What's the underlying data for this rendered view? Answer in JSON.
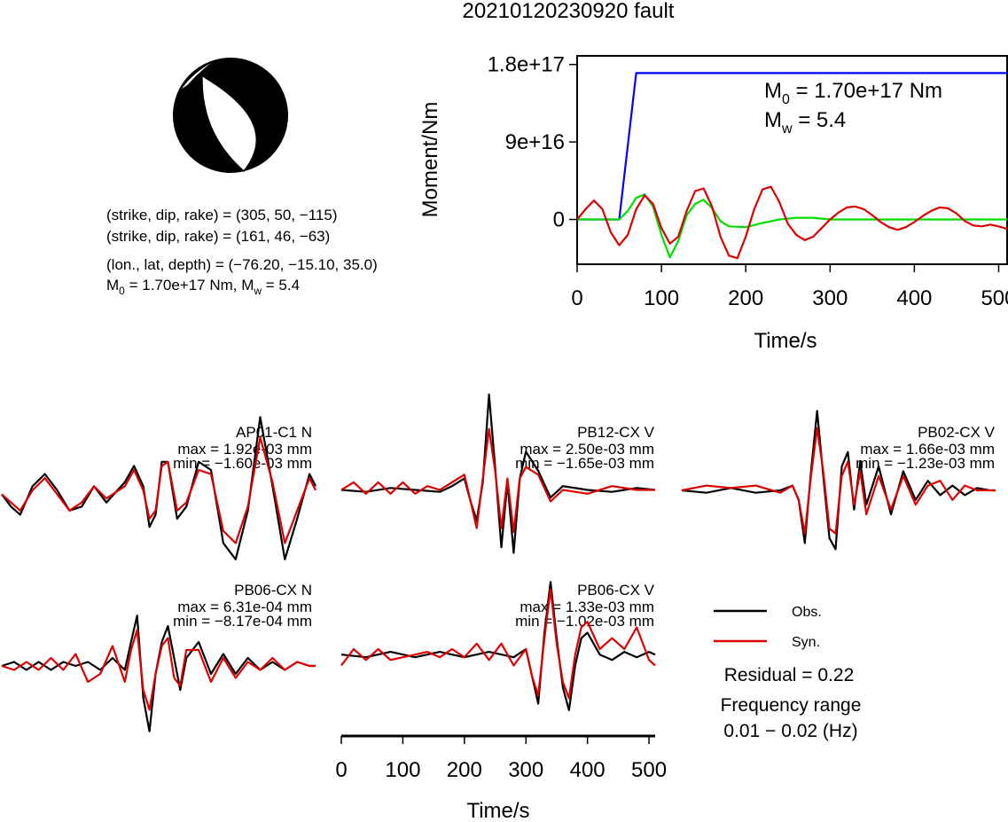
{
  "page": {
    "title": "20210120230920 fault"
  },
  "mechanism": {
    "nodal_plane_1": "(strike, dip, rake) = (305, 50, −115)",
    "nodal_plane_2": "(strike, dip, rake) = (161, 46, −63)",
    "location": "(lon., lat, depth) = (−76.20, −15.10, 35.0)",
    "moment_prefix": "M",
    "moment_sub": "0",
    "moment_mid": " = 1.70e+17 Nm, M",
    "moment_sub2": "w",
    "moment_suffix": " = 5.4"
  },
  "chart_data": [
    {
      "type": "line",
      "title": "",
      "xlabel": "Time/s",
      "ylabel": "Moment/Nm",
      "xlim": [
        0,
        510
      ],
      "ylim": [
        -5.2e+16,
        1.9e+17
      ],
      "x_ticks": [
        0,
        100,
        200,
        300,
        400,
        500
      ],
      "x_tick_labels": [
        "0",
        "100",
        "200",
        "300",
        "400",
        "500"
      ],
      "y_ticks": [
        0,
        9e+16,
        1.8e+17
      ],
      "y_tick_labels": [
        "0",
        "9e+16",
        "1.8e+17"
      ],
      "annotation": {
        "m0_prefix": "M",
        "m0_sub": "0",
        "m0_suffix": " = 1.70e+17 Nm",
        "mw_prefix": "M",
        "mw_sub": "w",
        "mw_suffix": " = 5.4"
      },
      "series": [
        {
          "color": "#0000ff",
          "x": [
            0,
            50,
            70,
            510
          ],
          "y": [
            0,
            0,
            1.7e+17,
            1.7e+17
          ]
        },
        {
          "color": "#00dd00",
          "x": [
            0,
            50,
            60,
            70,
            80,
            90,
            100,
            110,
            120,
            130,
            140,
            150,
            160,
            170,
            180,
            200,
            220,
            240,
            260,
            280,
            300,
            510
          ],
          "y": [
            0,
            0,
            1e+16,
            2.5e+16,
            2.9e+16,
            1.5e+16,
            -1.8e+16,
            -4.4e+16,
            -2.5e+16,
            5000000000000000.0,
            1.8e+16,
            2.3e+16,
            1.3e+16,
            -2000000000000000.0,
            -8000000000000000.0,
            -9000000000000000.0,
            -4000000000000000.0,
            0,
            2000000000000000.0,
            2000000000000000.0,
            0,
            0
          ]
        },
        {
          "color": "#dd0000",
          "x": [
            0,
            10,
            20,
            30,
            40,
            50,
            60,
            70,
            80,
            90,
            100,
            110,
            120,
            130,
            140,
            150,
            160,
            170,
            180,
            190,
            200,
            210,
            220,
            230,
            240,
            250,
            260,
            270,
            280,
            290,
            300,
            310,
            320,
            330,
            340,
            350,
            360,
            370,
            380,
            390,
            400,
            410,
            420,
            430,
            440,
            450,
            460,
            470,
            480,
            490,
            500,
            510
          ],
          "y": [
            0,
            1.2e+16,
            2.2e+16,
            1.2e+16,
            -1.5e+16,
            -3e+16,
            -1.8e+16,
            1.2e+16,
            2.8e+16,
            1.8e+16,
            -1e+16,
            -2.8e+16,
            -2e+16,
            1e+16,
            3.3e+16,
            3.6e+16,
            1.5e+16,
            -2e+16,
            -4.2e+16,
            -4.5e+16,
            -2e+16,
            1.2e+16,
            3.5e+16,
            3.8e+16,
            2e+16,
            -5000000000000000.0,
            -1.8e+16,
            -2.4e+16,
            -2e+16,
            -1e+16,
            0,
            8000000000000000.0,
            1.4e+16,
            1.5e+16,
            1.2e+16,
            5000000000000000.0,
            -3000000000000000.0,
            -9000000000000000.0,
            -1.2e+16,
            -9000000000000000.0,
            -3000000000000000.0,
            4000000000000000.0,
            1e+16,
            1.4e+16,
            1.3e+16,
            7000000000000000.0,
            -2000000000000000.0,
            -7000000000000000.0,
            -8000000000000000.0,
            -6000000000000000.0,
            -8000000000000000.0,
            -1.1e+16
          ]
        }
      ]
    },
    {
      "type": "line",
      "title": "AP01-C1 N",
      "max_label": "max = 1.92e-03 mm",
      "min_label": "min = −1.60e-03 mm",
      "xlim": [
        0,
        510
      ],
      "ylim": [
        -1.8,
        1.8
      ],
      "series": [
        {
          "name": "Obs.",
          "color": "#000000",
          "x": [
            0,
            15,
            30,
            50,
            70,
            90,
            110,
            130,
            150,
            170,
            200,
            215,
            230,
            240,
            250,
            260,
            270,
            285,
            300,
            320,
            340,
            360,
            380,
            400,
            420,
            440,
            460,
            480,
            500,
            510
          ],
          "y": [
            0,
            -0.3,
            -0.5,
            0.2,
            0.5,
            0.1,
            -0.4,
            -0.3,
            0.2,
            -0.2,
            0.3,
            0.7,
            0.2,
            -0.8,
            -0.5,
            0.8,
            0.8,
            -0.6,
            -0.3,
            0.8,
            0.6,
            -1.2,
            -1.6,
            -0.4,
            1.9,
            0.2,
            -1.6,
            -0.6,
            0.5,
            0.2
          ]
        },
        {
          "name": "Syn.",
          "color": "#dd0000",
          "x": [
            0,
            15,
            30,
            50,
            70,
            90,
            110,
            130,
            150,
            170,
            200,
            215,
            230,
            240,
            250,
            260,
            270,
            285,
            300,
            320,
            340,
            360,
            380,
            400,
            420,
            440,
            460,
            480,
            500,
            510
          ],
          "y": [
            0,
            -0.2,
            -0.4,
            0.1,
            0.4,
            0.0,
            -0.4,
            -0.2,
            0.2,
            -0.1,
            0.2,
            0.6,
            0.1,
            -0.6,
            -0.4,
            0.7,
            0.8,
            -0.4,
            -0.2,
            0.6,
            0.5,
            -0.9,
            -1.2,
            -0.3,
            1.4,
            0.3,
            -1.2,
            -0.4,
            0.4,
            0.1
          ]
        }
      ]
    },
    {
      "type": "line",
      "title": "PB12-CX V",
      "max_label": "max = 2.50e-03 mm",
      "min_label": "min = −1.65e-03 mm",
      "xlim": [
        0,
        510
      ],
      "ylim": [
        -1.8,
        1.8
      ],
      "series": [
        {
          "name": "Obs.",
          "color": "#000000",
          "x": [
            0,
            40,
            80,
            120,
            160,
            180,
            200,
            210,
            220,
            230,
            240,
            250,
            260,
            270,
            280,
            290,
            300,
            320,
            340,
            360,
            400,
            440,
            480,
            510
          ],
          "y": [
            0,
            -0.05,
            0.05,
            0,
            -0.05,
            0.1,
            0.3,
            -0.3,
            -0.8,
            0.2,
            2.5,
            0.6,
            -1.5,
            0.2,
            -1.65,
            0.3,
            1.0,
            0.5,
            -0.2,
            0.1,
            0.0,
            -0.05,
            0.05,
            0
          ]
        },
        {
          "name": "Syn.",
          "color": "#dd0000",
          "x": [
            0,
            20,
            40,
            60,
            80,
            100,
            120,
            140,
            160,
            180,
            200,
            210,
            220,
            230,
            240,
            250,
            260,
            270,
            280,
            290,
            300,
            320,
            340,
            360,
            400,
            440,
            480,
            510
          ],
          "y": [
            0,
            0.2,
            -0.1,
            0.2,
            -0.1,
            0.2,
            -0.1,
            0.1,
            0.0,
            0.2,
            0.4,
            -0.3,
            -1.0,
            0.3,
            1.6,
            0.5,
            -1.0,
            0.3,
            -1.1,
            0.3,
            0.6,
            0.4,
            -0.3,
            0.0,
            -0.1,
            0.1,
            0.0,
            0
          ]
        }
      ]
    },
    {
      "type": "line",
      "title": "PB02-CX V",
      "max_label": "max = 1.66e-03 mm",
      "min_label": "min = −1.23e-03 mm",
      "xlim": [
        0,
        510
      ],
      "ylim": [
        -1.5,
        1.5
      ],
      "series": [
        {
          "name": "Obs.",
          "color": "#000000",
          "x": [
            0,
            40,
            80,
            120,
            160,
            180,
            190,
            200,
            210,
            220,
            230,
            240,
            250,
            260,
            270,
            280,
            290,
            300,
            320,
            340,
            360,
            380,
            400,
            420,
            440,
            460,
            480,
            500,
            510
          ],
          "y": [
            0,
            -0.05,
            0.05,
            -0.05,
            0,
            0.1,
            -0.2,
            -1.1,
            0.4,
            1.66,
            0.3,
            -1.0,
            -1.23,
            0.5,
            0.8,
            -0.4,
            0.6,
            -0.3,
            0.5,
            -0.5,
            0.4,
            -0.2,
            0.2,
            -0.1,
            0.1,
            -0.1,
            0.05,
            0.0,
            0
          ]
        },
        {
          "name": "Syn.",
          "color": "#dd0000",
          "x": [
            0,
            40,
            80,
            120,
            160,
            180,
            190,
            200,
            210,
            220,
            230,
            240,
            250,
            260,
            270,
            280,
            290,
            300,
            320,
            340,
            360,
            380,
            400,
            420,
            440,
            460,
            480,
            500,
            510
          ],
          "y": [
            0,
            0.1,
            0.05,
            0.1,
            -0.05,
            0.1,
            -0.2,
            -0.9,
            0.3,
            1.3,
            0.4,
            -0.8,
            -0.9,
            0.3,
            0.6,
            -0.3,
            0.4,
            -0.5,
            0.3,
            -0.4,
            0.3,
            -0.3,
            0.1,
            0.2,
            -0.2,
            0.1,
            0.0,
            0.0,
            0
          ]
        }
      ]
    },
    {
      "type": "line",
      "title": "PB06-CX N",
      "max_label": "max = 6.31e-04 mm",
      "min_label": "min = −8.17e-04 mm",
      "xlim": [
        0,
        510
      ],
      "ylim": [
        -0.9,
        0.9
      ],
      "series": [
        {
          "name": "Obs.",
          "color": "#000000",
          "x": [
            0,
            20,
            40,
            60,
            80,
            100,
            120,
            140,
            160,
            180,
            200,
            210,
            220,
            230,
            240,
            250,
            260,
            270,
            280,
            290,
            300,
            320,
            340,
            360,
            380,
            400,
            420,
            440,
            460,
            480,
            500,
            510
          ],
          "y": [
            0,
            0.05,
            -0.05,
            0.05,
            -0.05,
            0.05,
            0.0,
            0.05,
            -0.05,
            0.1,
            -0.05,
            0.3,
            0.63,
            -0.4,
            -0.82,
            -0.1,
            0.3,
            0.5,
            0.1,
            -0.3,
            0.1,
            0.3,
            -0.1,
            0.15,
            -0.1,
            0.1,
            -0.05,
            0.05,
            -0.05,
            0.05,
            0,
            0
          ]
        },
        {
          "name": "Syn.",
          "color": "#dd0000",
          "x": [
            0,
            20,
            40,
            60,
            80,
            100,
            120,
            140,
            160,
            180,
            200,
            210,
            220,
            230,
            240,
            250,
            260,
            270,
            280,
            290,
            300,
            320,
            340,
            360,
            380,
            400,
            420,
            440,
            460,
            480,
            500,
            510
          ],
          "y": [
            0,
            -0.05,
            0.05,
            -0.05,
            0.1,
            -0.05,
            0.15,
            -0.2,
            -0.1,
            0.25,
            -0.2,
            0.2,
            0.45,
            -0.3,
            -0.55,
            -0.1,
            0.25,
            0.35,
            -0.15,
            -0.25,
            0.2,
            0.2,
            -0.2,
            0.1,
            -0.15,
            0.05,
            -0.05,
            0.1,
            -0.05,
            0.05,
            0,
            0
          ]
        }
      ]
    },
    {
      "type": "line",
      "title": "PB06-CX V",
      "max_label": "max = 1.33e-03 mm",
      "min_label": "min = −1.02e-03 mm",
      "xlim": [
        0,
        510
      ],
      "ylim": [
        -1.2,
        1.4
      ],
      "x_ticks": [
        0,
        100,
        200,
        300,
        400,
        500
      ],
      "x_tick_labels": [
        "0",
        "100",
        "200",
        "300",
        "400",
        "500"
      ],
      "xlabel": "Time/s",
      "series": [
        {
          "name": "Obs.",
          "color": "#000000",
          "x": [
            0,
            40,
            80,
            120,
            160,
            200,
            240,
            280,
            300,
            310,
            320,
            330,
            340,
            350,
            360,
            370,
            380,
            390,
            400,
            420,
            440,
            460,
            480,
            500,
            510
          ],
          "y": [
            0,
            -0.05,
            0.05,
            -0.05,
            0.05,
            -0.05,
            0.05,
            -0.05,
            0.1,
            -0.4,
            -0.9,
            0.4,
            1.33,
            0.3,
            -0.6,
            -1.02,
            -0.2,
            0.3,
            0.4,
            0.0,
            -0.1,
            0.05,
            -0.05,
            0.05,
            0
          ]
        },
        {
          "name": "Syn.",
          "color": "#dd0000",
          "x": [
            0,
            20,
            40,
            60,
            80,
            100,
            120,
            140,
            160,
            180,
            200,
            220,
            240,
            260,
            280,
            300,
            310,
            320,
            330,
            340,
            350,
            360,
            370,
            380,
            390,
            400,
            420,
            440,
            460,
            480,
            500,
            510
          ],
          "y": [
            -0.2,
            0.1,
            -0.1,
            0.1,
            -0.1,
            -0.05,
            0.0,
            0.05,
            -0.05,
            0.1,
            -0.05,
            0.2,
            -0.1,
            0.2,
            -0.2,
            0.1,
            -0.4,
            -0.75,
            0.3,
            1.2,
            0.2,
            -0.5,
            -0.8,
            0.0,
            0.5,
            0.6,
            0.1,
            0.3,
            0.1,
            0.5,
            -0.1,
            -0.2
          ]
        }
      ]
    }
  ],
  "legend": {
    "obs_label": "Obs.",
    "syn_label": "Syn.",
    "obs_color": "#000000",
    "syn_color": "#dd0000",
    "residual": "Residual = 0.22",
    "freq_title": "Frequency range",
    "freq_value": "0.01 − 0.02 (Hz)"
  }
}
